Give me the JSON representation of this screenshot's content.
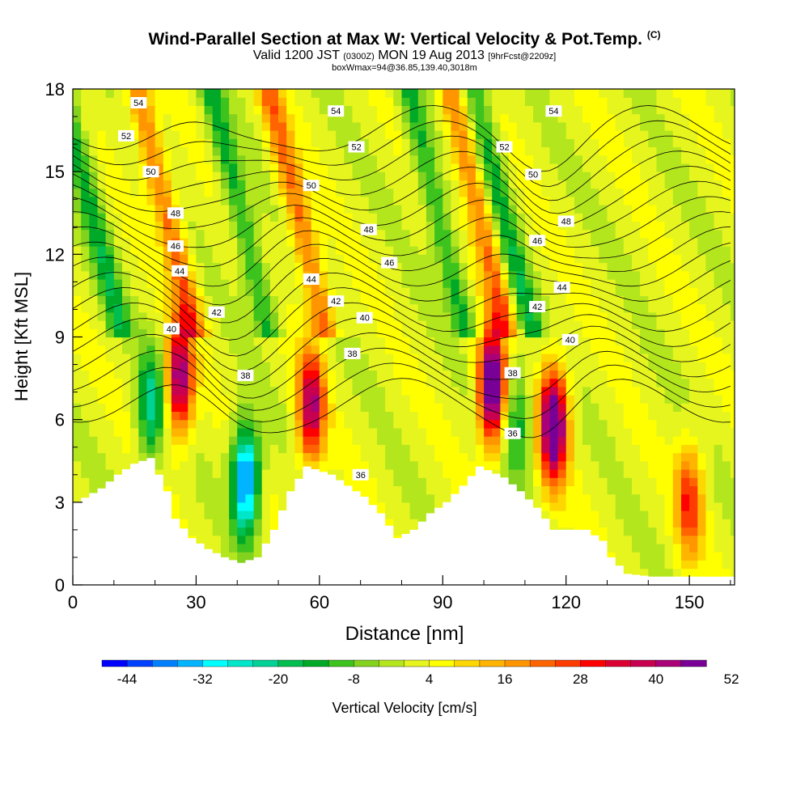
{
  "title": {
    "main": "Wind-Parallel Section at Max W: Vertical Velocity & Pot.Temp.",
    "copyright": "(C)",
    "valid_pre": "Valid 1200 JST",
    "valid_utc": "(0300Z)",
    "valid_post": "MON 19 Aug 2013",
    "forecast": "[9hrFcst@2209z]",
    "box": "boxWmax=94@36.85,139.40,3018m"
  },
  "chart_data": {
    "type": "heatmap",
    "xlabel": "Distance [nm]",
    "ylabel": "Height [Kft MSL]",
    "xlim": [
      0,
      161
    ],
    "ylim": [
      0,
      18
    ],
    "xticks": [
      0,
      30,
      60,
      90,
      120,
      150
    ],
    "yticks": [
      0,
      3,
      6,
      9,
      12,
      15,
      18
    ],
    "colorbar": {
      "label": "Vertical Velocity [cm/s]",
      "ticks": [
        "-44",
        "-32",
        "-20",
        "-8",
        "4",
        "16",
        "28",
        "40",
        "52"
      ],
      "colors": [
        "#0000ff",
        "#0040ff",
        "#0080ff",
        "#00b4ff",
        "#00ffff",
        "#00e6c8",
        "#00d296",
        "#00be50",
        "#00aa28",
        "#3cc31e",
        "#82d21e",
        "#b4e61e",
        "#e6f51e",
        "#ffff00",
        "#ffd700",
        "#ffb400",
        "#ff9600",
        "#ff6400",
        "#ff3c00",
        "#ff0000",
        "#dc0032",
        "#c80050",
        "#aa0078",
        "#780096"
      ]
    },
    "terrain_heights_kft": [
      [
        0,
        3.0
      ],
      [
        6,
        3.5
      ],
      [
        10,
        4.0
      ],
      [
        14,
        4.4
      ],
      [
        18,
        4.6
      ],
      [
        22,
        3.4
      ],
      [
        24,
        2.4
      ],
      [
        28,
        1.7
      ],
      [
        32,
        1.3
      ],
      [
        36,
        1.0
      ],
      [
        40,
        0.8
      ],
      [
        44,
        1.0
      ],
      [
        48,
        2.0
      ],
      [
        52,
        3.4
      ],
      [
        56,
        4.3
      ],
      [
        62,
        4.0
      ],
      [
        66,
        3.6
      ],
      [
        70,
        3.2
      ],
      [
        74,
        2.6
      ],
      [
        78,
        1.7
      ],
      [
        82,
        2.0
      ],
      [
        86,
        2.6
      ],
      [
        90,
        3.0
      ],
      [
        94,
        3.6
      ],
      [
        98,
        4.3
      ],
      [
        104,
        3.9
      ],
      [
        108,
        3.4
      ],
      [
        112,
        2.8
      ],
      [
        116,
        2.0
      ],
      [
        124,
        2.0
      ],
      [
        128,
        1.6
      ],
      [
        130,
        1.0
      ],
      [
        134,
        0.4
      ],
      [
        140,
        0.3
      ],
      [
        161,
        0.3
      ]
    ],
    "updraft_cores": [
      {
        "x": 26,
        "y": 7.5,
        "w_cms": 44
      },
      {
        "x": 58,
        "y": 6.5,
        "w_cms": 40
      },
      {
        "x": 102,
        "y": 7.2,
        "w_cms": 56
      },
      {
        "x": 117,
        "y": 5.8,
        "w_cms": 56
      },
      {
        "x": 150,
        "y": 3.0,
        "w_cms": 26
      }
    ],
    "downdraft_cores": [
      {
        "x": 42,
        "y": 3.8,
        "w_cms": -44
      },
      {
        "x": 19,
        "y": 6.5,
        "w_cms": -24
      },
      {
        "x": 108,
        "y": 6.0,
        "w_cms": -18
      }
    ],
    "theta_contours": [
      {
        "label": "54",
        "label_x": 16,
        "label_y": 17.5
      },
      {
        "label": "52",
        "label_x": 13,
        "label_y": 16.3
      },
      {
        "label": "50",
        "label_x": 19,
        "label_y": 15.0
      },
      {
        "label": "48",
        "label_x": 25,
        "label_y": 13.5
      },
      {
        "label": "46",
        "label_x": 25,
        "label_y": 12.3
      },
      {
        "label": "44",
        "label_x": 26,
        "label_y": 11.4
      },
      {
        "label": "42",
        "label_x": 35,
        "label_y": 9.9
      },
      {
        "label": "40",
        "label_x": 24,
        "label_y": 9.3
      },
      {
        "label": "38",
        "label_x": 42,
        "label_y": 7.6
      },
      {
        "label": "54",
        "label_x": 64,
        "label_y": 17.2
      },
      {
        "label": "52",
        "label_x": 69,
        "label_y": 15.9
      },
      {
        "label": "50",
        "label_x": 58,
        "label_y": 14.5
      },
      {
        "label": "48",
        "label_x": 72,
        "label_y": 12.9
      },
      {
        "label": "46",
        "label_x": 77,
        "label_y": 11.7
      },
      {
        "label": "44",
        "label_x": 58,
        "label_y": 11.1
      },
      {
        "label": "42",
        "label_x": 64,
        "label_y": 10.3
      },
      {
        "label": "40",
        "label_x": 71,
        "label_y": 9.7
      },
      {
        "label": "38",
        "label_x": 68,
        "label_y": 8.4
      },
      {
        "label": "36",
        "label_x": 70,
        "label_y": 4.0
      },
      {
        "label": "52",
        "label_x": 105,
        "label_y": 15.9
      },
      {
        "label": "38",
        "label_x": 107,
        "label_y": 7.7
      },
      {
        "label": "36",
        "label_x": 107,
        "label_y": 5.5
      },
      {
        "label": "54",
        "label_x": 117,
        "label_y": 17.2
      },
      {
        "label": "50",
        "label_x": 112,
        "label_y": 14.9
      },
      {
        "label": "48",
        "label_x": 120,
        "label_y": 13.2
      },
      {
        "label": "46",
        "label_x": 113,
        "label_y": 12.5
      },
      {
        "label": "44",
        "label_x": 119,
        "label_y": 10.8
      },
      {
        "label": "42",
        "label_x": 113,
        "label_y": 10.1
      },
      {
        "label": "40",
        "label_x": 121,
        "label_y": 8.9
      }
    ]
  }
}
